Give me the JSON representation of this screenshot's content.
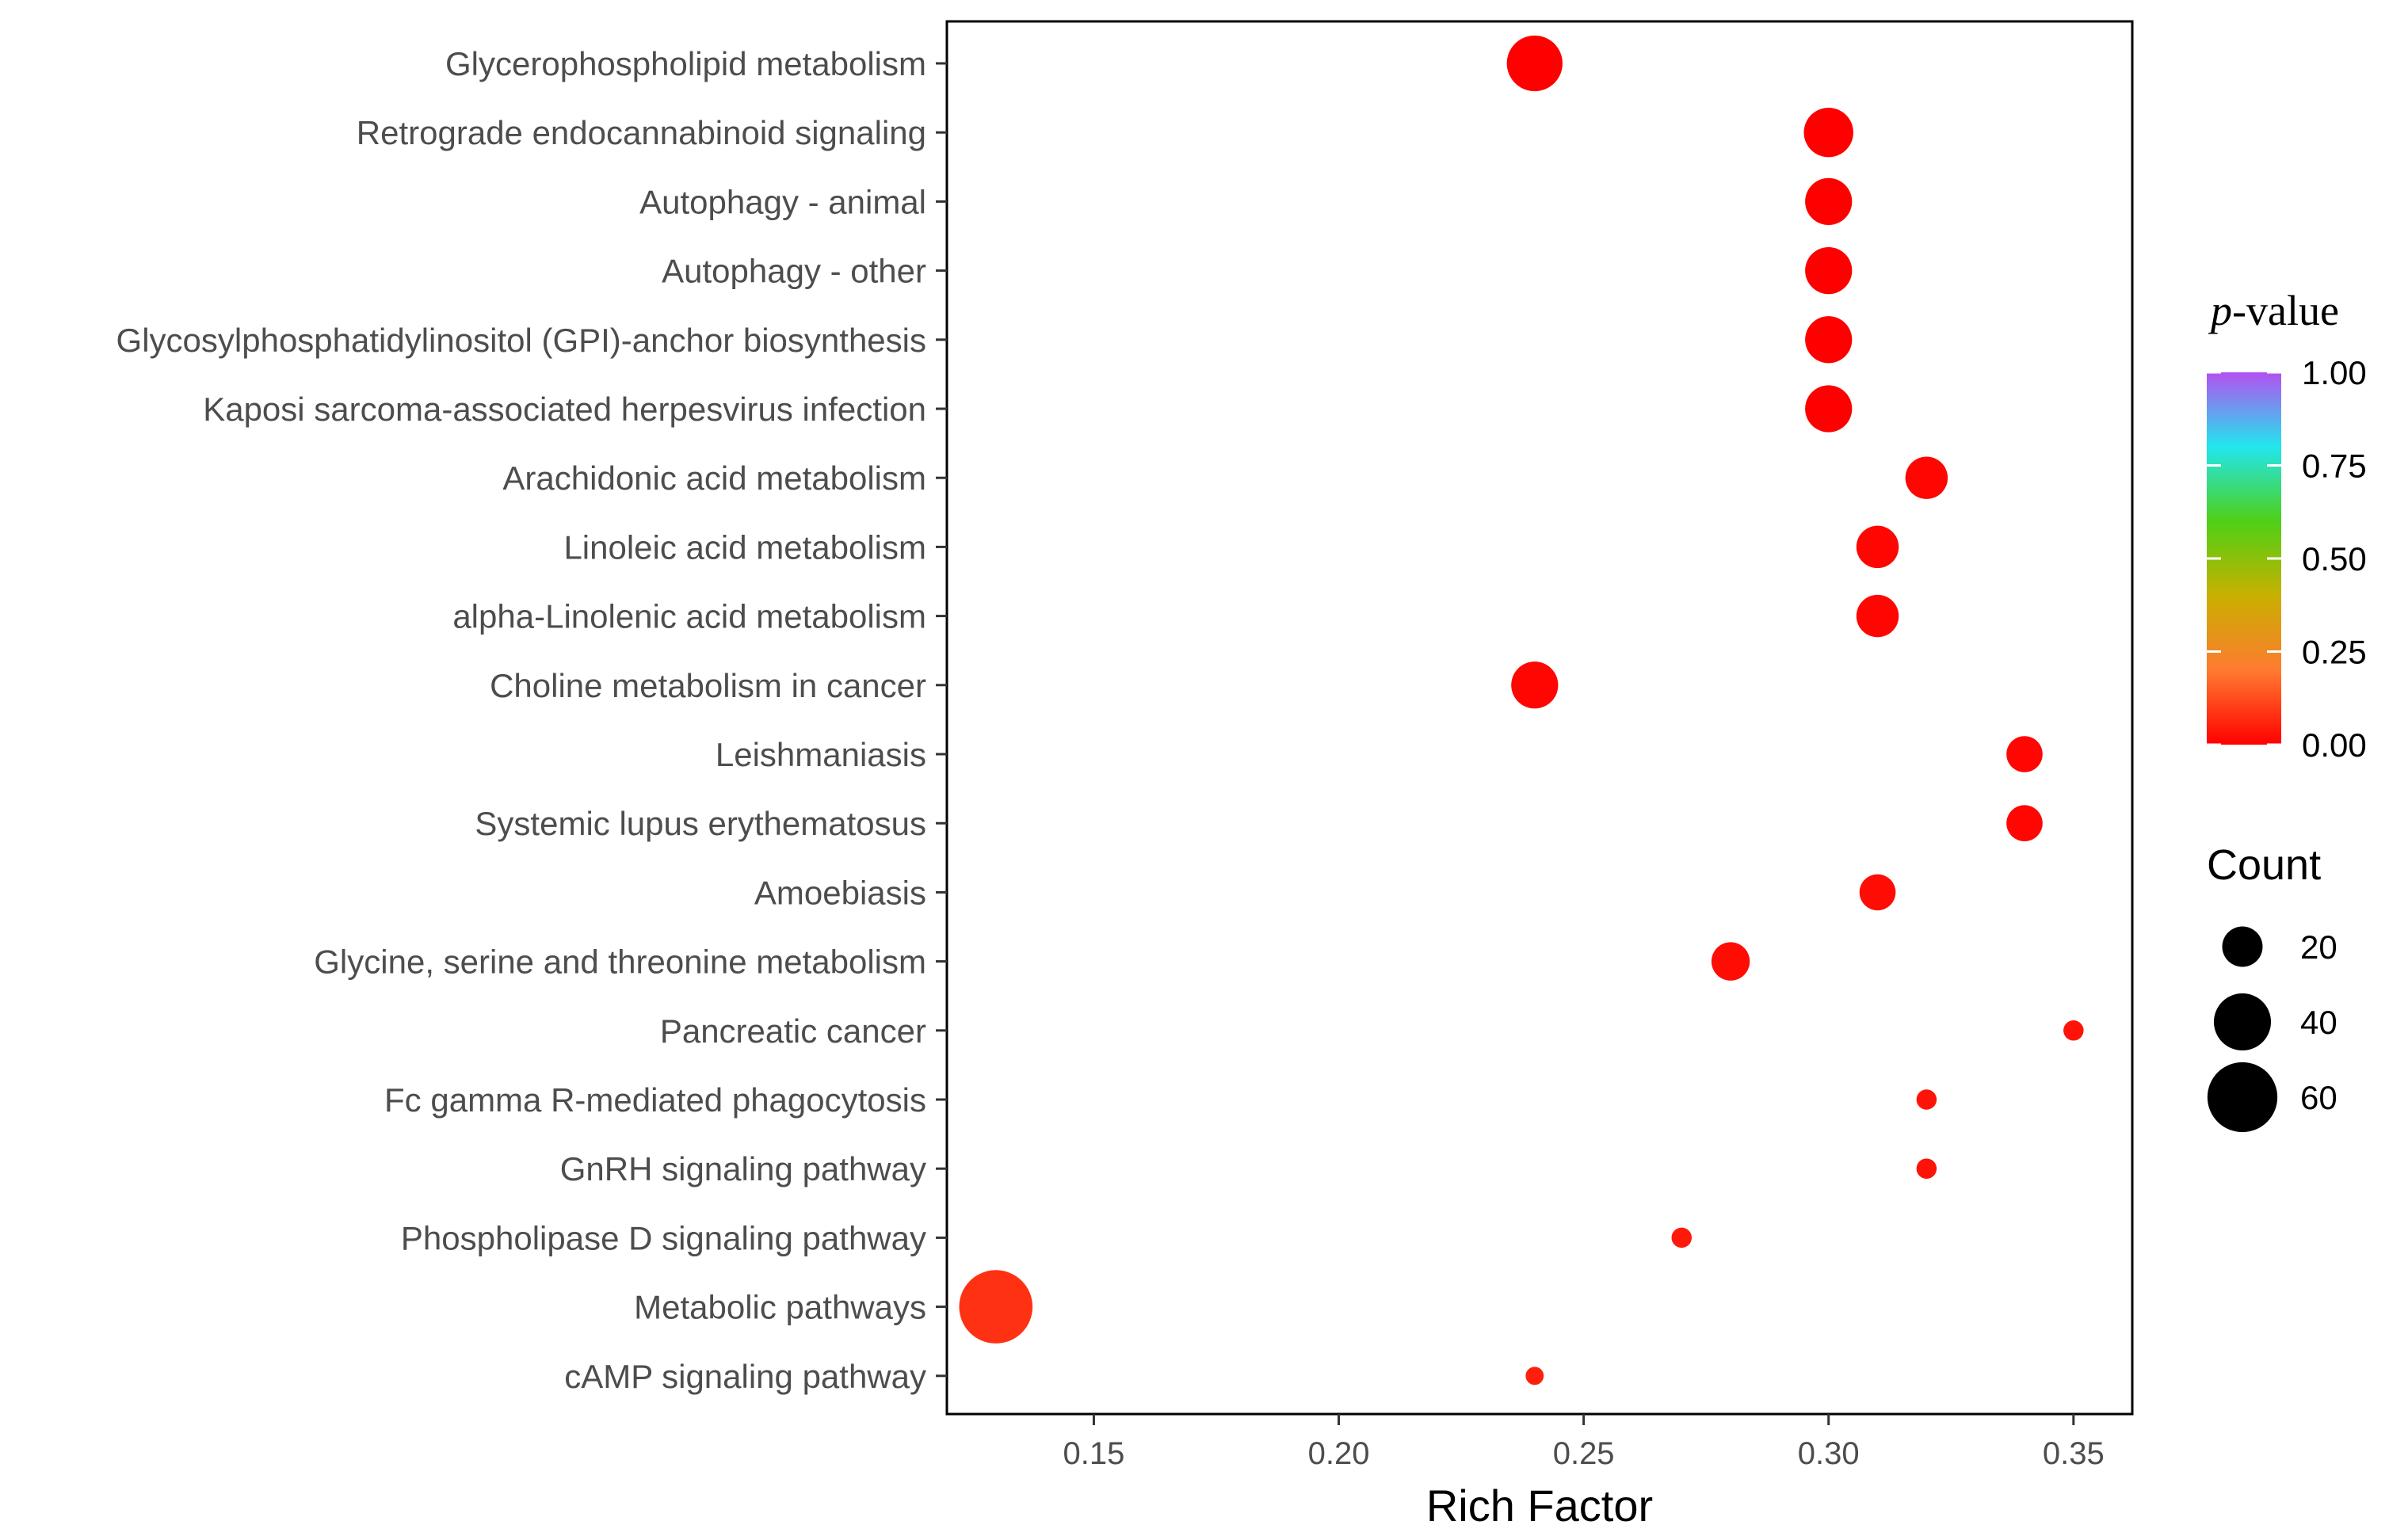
{
  "chart_data": {
    "type": "scatter",
    "xlabel": "Rich Factor",
    "x_ticks": [
      "0.15",
      "0.20",
      "0.25",
      "0.30",
      "0.35"
    ],
    "xlim": [
      0.12,
      0.362
    ],
    "categories": [
      "Glycerophospholipid metabolism",
      "Retrograde endocannabinoid signaling",
      "Autophagy - animal",
      "Autophagy - other",
      "Glycosylphosphatidylinositol (GPI)-anchor biosynthesis",
      "Kaposi sarcoma-associated herpesvirus infection",
      "Arachidonic acid metabolism",
      "Linoleic acid metabolism",
      "alpha-Linolenic acid metabolism",
      "Choline metabolism in cancer",
      "Leishmaniasis",
      "Systemic lupus erythematosus",
      "Amoebiasis",
      "Glycine, serine and threonine metabolism",
      "Pancreatic cancer",
      "Fc gamma R-mediated phagocytosis",
      "GnRH signaling pathway",
      "Phospholipase D signaling pathway",
      "Metabolic pathways",
      "cAMP signaling pathway"
    ],
    "points": [
      {
        "category": "Glycerophospholipid metabolism",
        "rich_factor": 0.24,
        "count": 38,
        "p_value": 0.0
      },
      {
        "category": "Retrograde endocannabinoid signaling",
        "rich_factor": 0.3,
        "count": 30,
        "p_value": 0.0
      },
      {
        "category": "Autophagy - animal",
        "rich_factor": 0.3,
        "count": 27,
        "p_value": 0.0
      },
      {
        "category": "Autophagy - other",
        "rich_factor": 0.3,
        "count": 27,
        "p_value": 0.0
      },
      {
        "category": "Glycosylphosphatidylinositol (GPI)-anchor biosynthesis",
        "rich_factor": 0.3,
        "count": 27,
        "p_value": 0.0
      },
      {
        "category": "Kaposi sarcoma-associated herpesvirus infection",
        "rich_factor": 0.3,
        "count": 27,
        "p_value": 0.0
      },
      {
        "category": "Arachidonic acid metabolism",
        "rich_factor": 0.32,
        "count": 22,
        "p_value": 0.01
      },
      {
        "category": "Linoleic acid metabolism",
        "rich_factor": 0.31,
        "count": 22,
        "p_value": 0.01
      },
      {
        "category": "alpha-Linolenic acid metabolism",
        "rich_factor": 0.31,
        "count": 22,
        "p_value": 0.01
      },
      {
        "category": "Choline metabolism in cancer",
        "rich_factor": 0.24,
        "count": 27,
        "p_value": 0.01
      },
      {
        "category": "Leishmaniasis",
        "rich_factor": 0.34,
        "count": 16,
        "p_value": 0.01
      },
      {
        "category": "Systemic lupus erythematosus",
        "rich_factor": 0.34,
        "count": 16,
        "p_value": 0.01
      },
      {
        "category": "Amoebiasis",
        "rich_factor": 0.31,
        "count": 16,
        "p_value": 0.02
      },
      {
        "category": "Glycine, serine and threonine metabolism",
        "rich_factor": 0.28,
        "count": 18,
        "p_value": 0.02
      },
      {
        "category": "Pancreatic cancer",
        "rich_factor": 0.35,
        "count": 5,
        "p_value": 0.03
      },
      {
        "category": "Fc gamma R-mediated phagocytosis",
        "rich_factor": 0.32,
        "count": 5,
        "p_value": 0.03
      },
      {
        "category": "GnRH signaling pathway",
        "rich_factor": 0.32,
        "count": 5,
        "p_value": 0.03
      },
      {
        "category": "Phospholipase D signaling pathway",
        "rich_factor": 0.27,
        "count": 5,
        "p_value": 0.04
      },
      {
        "category": "Metabolic pathways",
        "rich_factor": 0.13,
        "count": 66,
        "p_value": 0.08
      },
      {
        "category": "cAMP signaling pathway",
        "rich_factor": 0.24,
        "count": 4,
        "p_value": 0.05
      }
    ],
    "legend": {
      "color_title_italic": "p",
      "color_title_rest": "-value",
      "color_ticks": [
        "1.00",
        "0.75",
        "0.50",
        "0.25",
        "0.00"
      ],
      "color_range": [
        0,
        1
      ],
      "color_stops": [
        "#ff0000",
        "#ff7b30",
        "#c8b000",
        "#4ed016",
        "#22e6ee",
        "#b450f0"
      ],
      "size_title": "Count",
      "size_ticks": [
        "20",
        "40",
        "60"
      ],
      "size_range": [
        4,
        66
      ]
    },
    "grid": false,
    "legend_position": "right"
  }
}
